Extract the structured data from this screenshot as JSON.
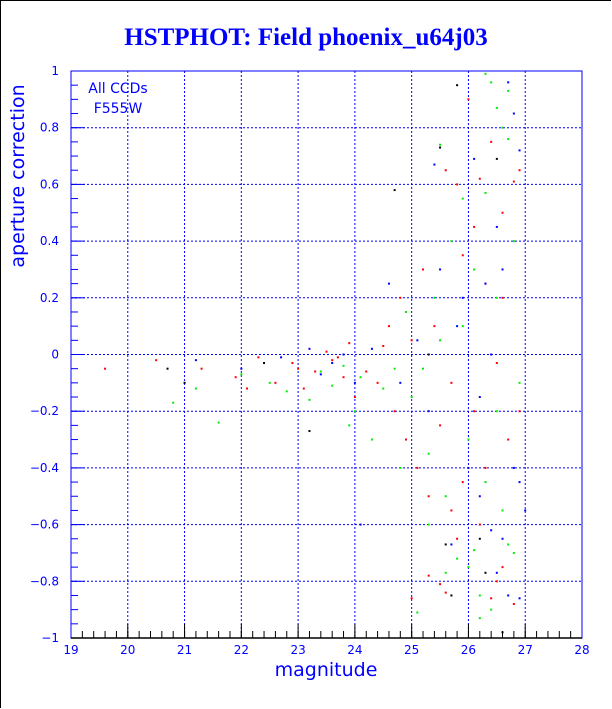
{
  "chart_data": {
    "type": "scatter",
    "title": "HSTPHOT: Field phoenix_u64j03",
    "xlabel": "magnitude",
    "ylabel": "aperture correction",
    "xlim": [
      19,
      28
    ],
    "ylim": [
      -1,
      1
    ],
    "xticks": [
      "19",
      "20",
      "21",
      "22",
      "23",
      "24",
      "25",
      "26",
      "27",
      "28"
    ],
    "yticks": [
      "−1",
      "−0.8",
      "−0.6",
      "−0.4",
      "−0.2",
      "0",
      "0.2",
      "0.4",
      "0.6",
      "0.8",
      "1"
    ],
    "grid": true,
    "annotations": [
      "All CCDs",
      "F555W"
    ],
    "colors": {
      "axis": "#0000ff",
      "grid": "#0000ff",
      "red": "#ff0000",
      "green": "#00ee00",
      "blue": "#0000ff",
      "black": "#000000"
    },
    "series": [
      {
        "name": "red",
        "color": "#ff0000",
        "points": [
          [
            19.6,
            -0.05
          ],
          [
            20.5,
            -0.02
          ],
          [
            21.3,
            -0.05
          ],
          [
            21.9,
            -0.08
          ],
          [
            22.3,
            -0.01
          ],
          [
            22.6,
            -0.1
          ],
          [
            22.9,
            -0.03
          ],
          [
            23.1,
            -0.12
          ],
          [
            23.3,
            -0.06
          ],
          [
            23.5,
            0.01
          ],
          [
            23.6,
            -0.02
          ],
          [
            23.7,
            -0.01
          ],
          [
            23.8,
            -0.08
          ],
          [
            23.9,
            0.04
          ],
          [
            24.0,
            -0.15
          ],
          [
            24.2,
            -0.06
          ],
          [
            24.4,
            -0.1
          ],
          [
            24.6,
            0.1
          ],
          [
            24.7,
            -0.2
          ],
          [
            24.8,
            0.2
          ],
          [
            24.9,
            -0.3
          ],
          [
            25.0,
            0.05
          ],
          [
            25.1,
            -0.4
          ],
          [
            25.2,
            0.3
          ],
          [
            25.3,
            -0.5
          ],
          [
            25.3,
            -0.78
          ],
          [
            25.4,
            0.1
          ],
          [
            25.5,
            -0.25
          ],
          [
            25.5,
            -0.81
          ],
          [
            25.6,
            0.65
          ],
          [
            25.6,
            -0.84
          ],
          [
            25.7,
            -0.1
          ],
          [
            25.8,
            0.6
          ],
          [
            25.8,
            -0.65
          ],
          [
            25.9,
            0.35
          ],
          [
            25.9,
            -0.45
          ],
          [
            26.0,
            0.9
          ],
          [
            26.1,
            -0.2
          ],
          [
            26.2,
            0.62
          ],
          [
            26.2,
            -0.6
          ],
          [
            26.3,
            0.25
          ],
          [
            26.3,
            -0.4
          ],
          [
            26.4,
            0.75
          ],
          [
            26.4,
            -0.86
          ],
          [
            26.5,
            -0.03
          ],
          [
            26.5,
            -0.8
          ],
          [
            26.6,
            0.5
          ],
          [
            26.6,
            -0.75
          ],
          [
            26.7,
            -0.3
          ],
          [
            26.8,
            0.61
          ],
          [
            26.8,
            -0.88
          ],
          [
            26.9,
            0.65
          ],
          [
            26.9,
            -0.2
          ],
          [
            25.0,
            -0.86
          ],
          [
            24.5,
            0.03
          ],
          [
            23.0,
            -0.05
          ],
          [
            22.1,
            -0.12
          ],
          [
            26.1,
            0.45
          ],
          [
            25.7,
            -0.55
          ],
          [
            26.6,
            0.2
          ]
        ]
      },
      {
        "name": "green",
        "color": "#00ee00",
        "points": [
          [
            20.8,
            -0.17
          ],
          [
            21.2,
            -0.12
          ],
          [
            21.6,
            -0.24
          ],
          [
            22.0,
            -0.07
          ],
          [
            22.5,
            -0.1
          ],
          [
            22.8,
            -0.13
          ],
          [
            23.2,
            -0.16
          ],
          [
            23.4,
            -0.06
          ],
          [
            23.6,
            -0.11
          ],
          [
            23.8,
            -0.04
          ],
          [
            24.0,
            -0.2
          ],
          [
            24.1,
            -0.08
          ],
          [
            24.3,
            -0.3
          ],
          [
            24.5,
            -0.12
          ],
          [
            24.7,
            -0.05
          ],
          [
            24.8,
            -0.4
          ],
          [
            25.0,
            -0.15
          ],
          [
            25.1,
            -0.91
          ],
          [
            25.2,
            -0.05
          ],
          [
            25.3,
            -0.35
          ],
          [
            25.4,
            0.2
          ],
          [
            25.5,
            0.74
          ],
          [
            25.6,
            -0.5
          ],
          [
            25.6,
            -0.77
          ],
          [
            25.7,
            0.4
          ],
          [
            25.8,
            -0.72
          ],
          [
            25.9,
            0.1
          ],
          [
            26.0,
            -0.75
          ],
          [
            26.1,
            -0.69
          ],
          [
            26.1,
            0.3
          ],
          [
            26.2,
            -0.85
          ],
          [
            26.2,
            -0.93
          ],
          [
            26.3,
            0.99
          ],
          [
            26.3,
            0.57
          ],
          [
            26.4,
            0.96
          ],
          [
            26.4,
            -0.9
          ],
          [
            26.5,
            0.87
          ],
          [
            26.5,
            -0.2
          ],
          [
            26.6,
            0.8
          ],
          [
            26.6,
            -0.55
          ],
          [
            26.7,
            0.93
          ],
          [
            26.7,
            -0.67
          ],
          [
            26.7,
            0.76
          ],
          [
            26.8,
            -0.7
          ],
          [
            26.8,
            0.4
          ],
          [
            26.9,
            -0.1
          ],
          [
            25.9,
            0.55
          ],
          [
            26.0,
            -0.3
          ],
          [
            25.3,
            -0.6
          ],
          [
            24.9,
            0.15
          ],
          [
            23.9,
            -0.25
          ],
          [
            26.3,
            -0.45
          ],
          [
            26.5,
            0.2
          ],
          [
            25.5,
            0.05
          ]
        ]
      },
      {
        "name": "blue",
        "color": "#0000ff",
        "points": [
          [
            21.2,
            -0.02
          ],
          [
            22.0,
            -0.05
          ],
          [
            22.7,
            -0.01
          ],
          [
            23.2,
            0.02
          ],
          [
            23.4,
            -0.07
          ],
          [
            23.6,
            -0.03
          ],
          [
            23.8,
            0.0
          ],
          [
            24.0,
            -0.1
          ],
          [
            24.1,
            -0.6
          ],
          [
            24.3,
            0.02
          ],
          [
            24.6,
            0.25
          ],
          [
            24.8,
            -0.1
          ],
          [
            25.1,
            0.05
          ],
          [
            25.3,
            -0.2
          ],
          [
            25.4,
            0.67
          ],
          [
            25.5,
            0.3
          ],
          [
            25.7,
            -0.67
          ],
          [
            25.9,
            0.2
          ],
          [
            26.0,
            -0.4
          ],
          [
            26.1,
            0.69
          ],
          [
            26.2,
            -0.5
          ],
          [
            26.3,
            0.25
          ],
          [
            26.4,
            -0.62
          ],
          [
            26.5,
            -0.77
          ],
          [
            26.5,
            0.45
          ],
          [
            26.6,
            -0.65
          ],
          [
            26.6,
            0.3
          ],
          [
            26.7,
            0.96
          ],
          [
            26.7,
            -0.85
          ],
          [
            26.8,
            0.85
          ],
          [
            26.8,
            -0.4
          ],
          [
            26.9,
            0.72
          ],
          [
            26.9,
            -0.45
          ],
          [
            26.9,
            -0.86
          ],
          [
            27.0,
            -0.55
          ],
          [
            26.4,
            0.0
          ],
          [
            25.8,
            0.1
          ],
          [
            26.2,
            -0.15
          ]
        ]
      },
      {
        "name": "black",
        "color": "#000000",
        "points": [
          [
            20.7,
            -0.05
          ],
          [
            21.0,
            -0.1
          ],
          [
            22.4,
            -0.03
          ],
          [
            23.2,
            -0.27
          ],
          [
            24.7,
            0.58
          ],
          [
            25.5,
            0.73
          ],
          [
            25.6,
            -0.67
          ],
          [
            25.7,
            -0.85
          ],
          [
            25.8,
            0.95
          ],
          [
            26.3,
            -0.77
          ],
          [
            26.5,
            0.69
          ],
          [
            26.6,
            -0.98
          ],
          [
            26.2,
            -0.65
          ],
          [
            25.3,
            0.0
          ]
        ]
      }
    ]
  }
}
